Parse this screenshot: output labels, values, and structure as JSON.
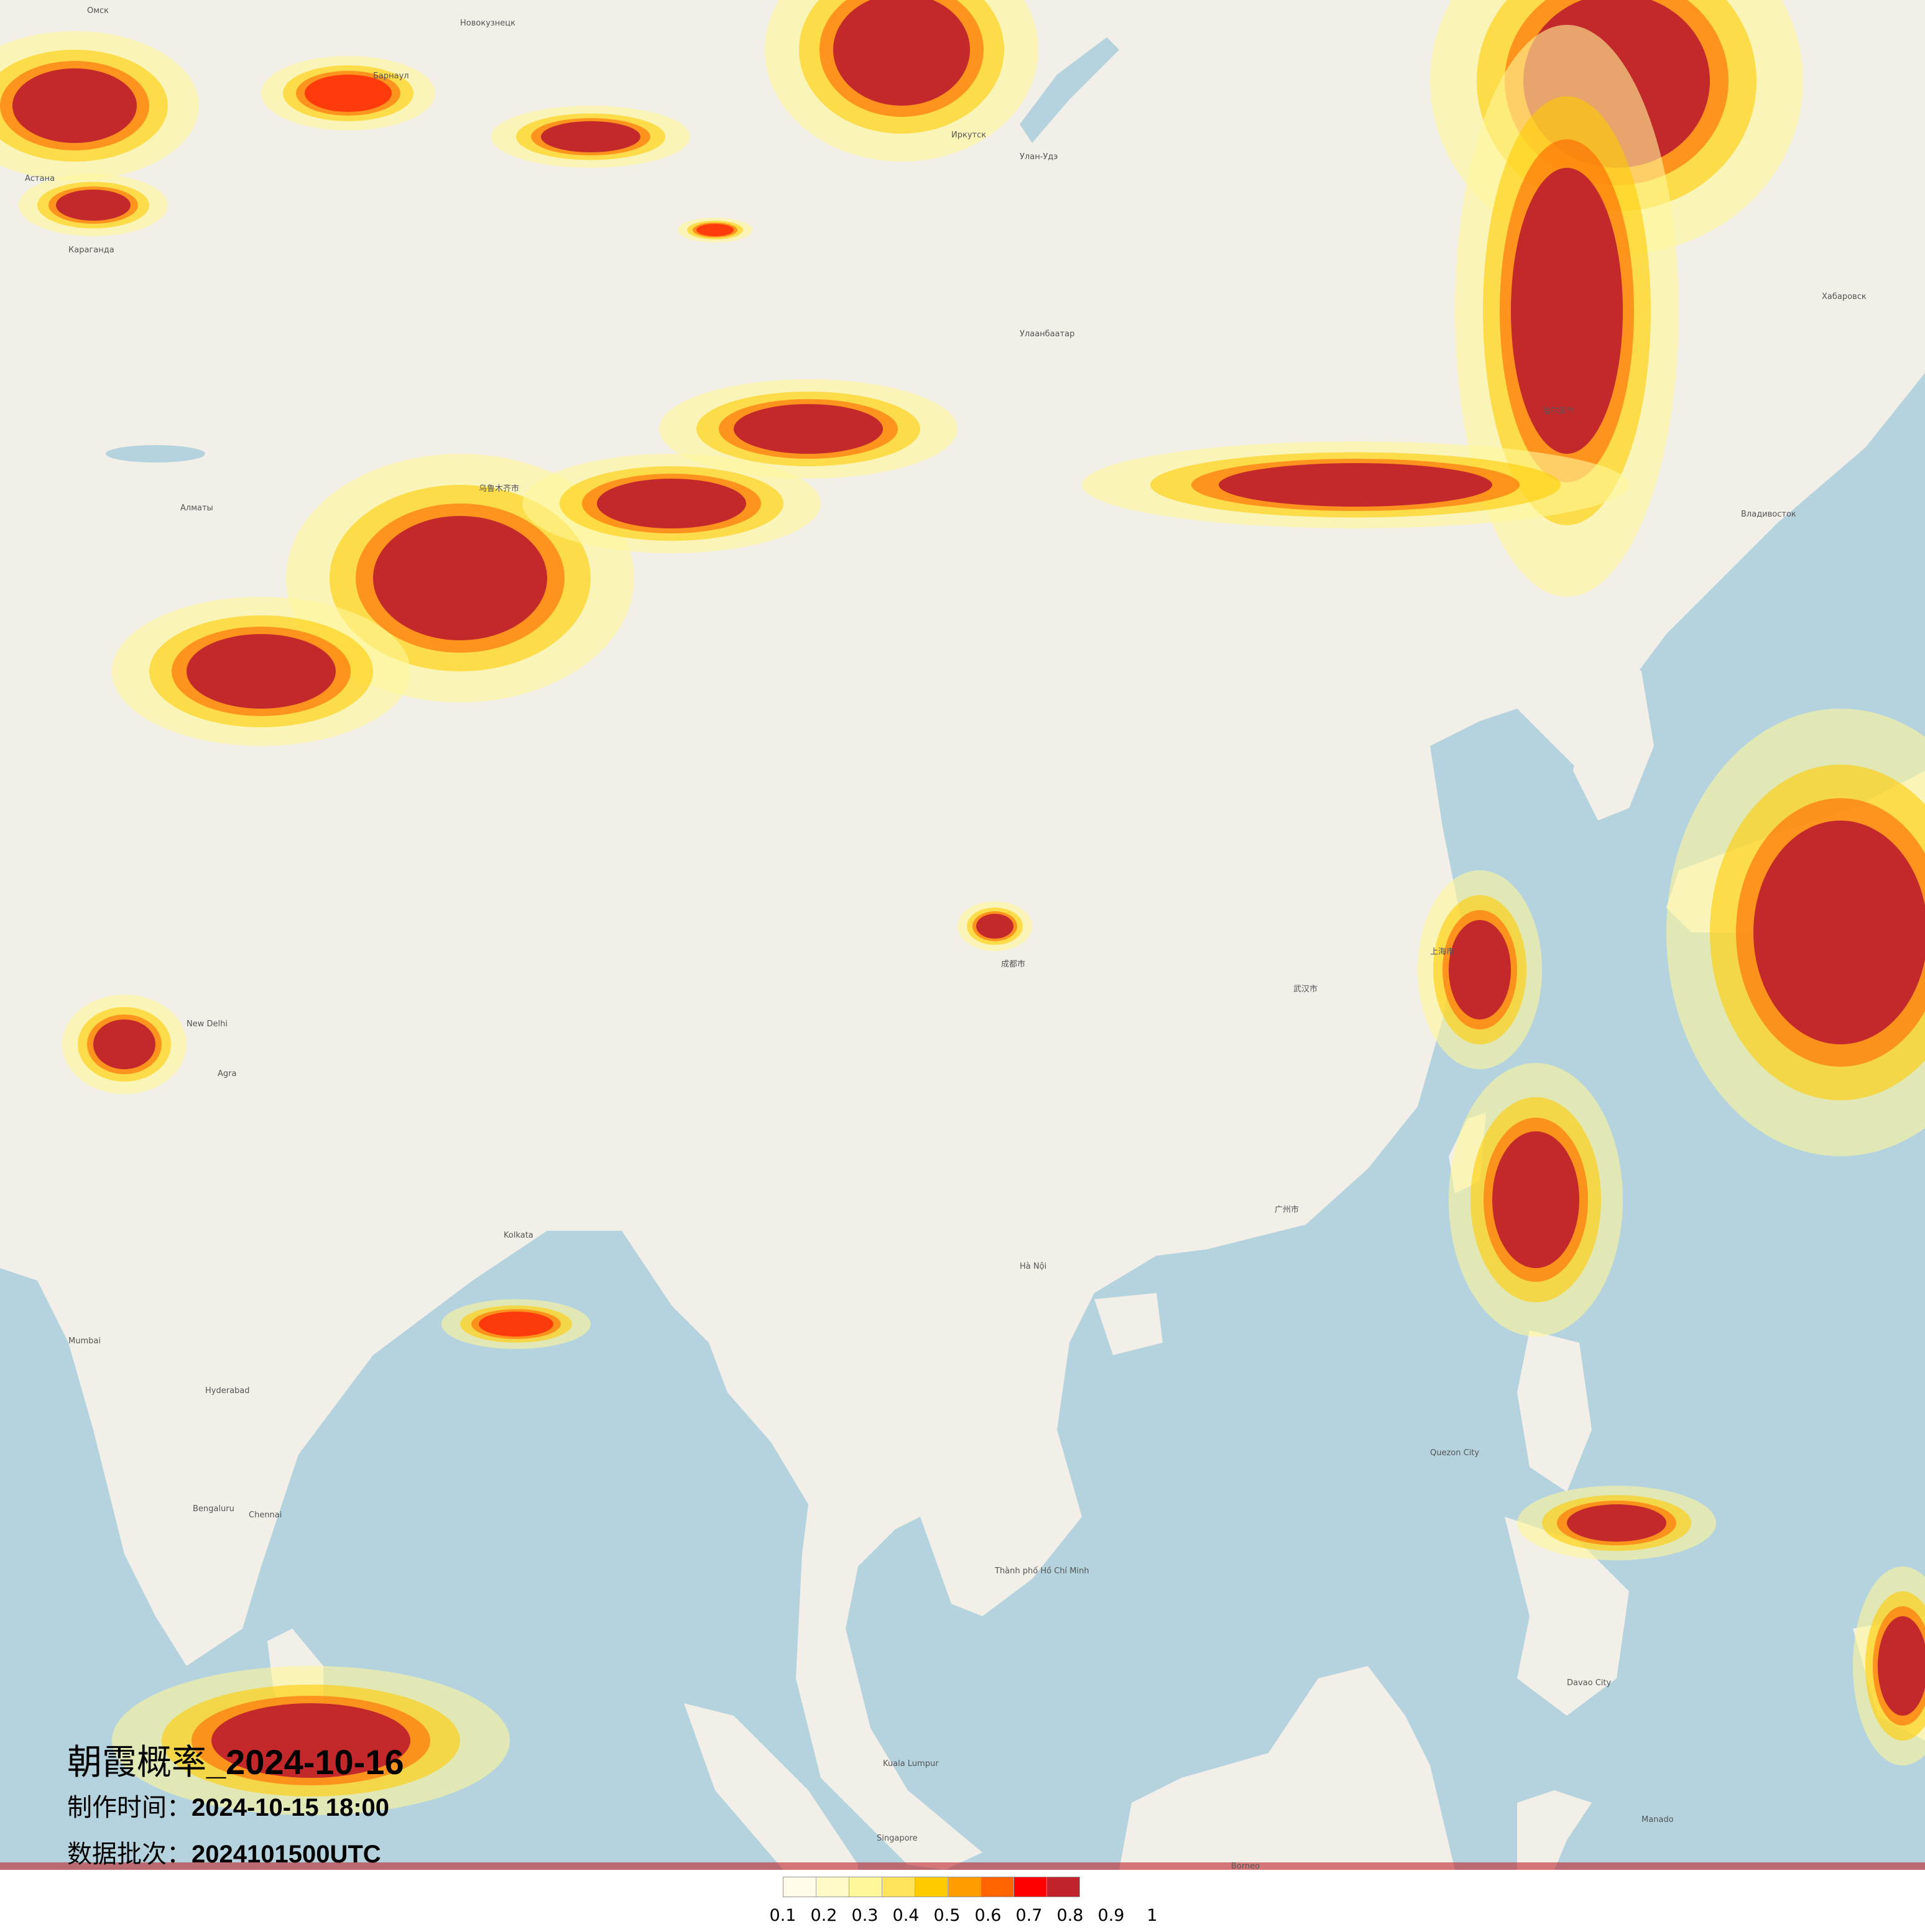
{
  "title": "朝霞概率_2024-10-16",
  "title_cn": "朝霞概率",
  "title_date": "_2024-10-16",
  "made_label": "制作时间：",
  "made_value": "2024-10-15 18:00",
  "batch_label": "数据批次：",
  "batch_value": "2024101500UTC",
  "legend": {
    "colors": [
      "#fffbe8",
      "#fff9c8",
      "#fff799",
      "#ffe35a",
      "#ffcc00",
      "#ff9c00",
      "#ff6400",
      "#ff0000",
      "#c0232c"
    ],
    "ticks": [
      "0.1",
      "0.2",
      "0.3",
      "0.4",
      "0.5",
      "0.6",
      "0.7",
      "0.8",
      "0.9",
      "1"
    ]
  },
  "colors": {
    "land": "#f2efe9",
    "sea": "#b5d3de"
  },
  "cities": [
    "Омск",
    "Новокузнецк",
    "Барнаул",
    "Астана",
    "Караганда",
    "Иркутск",
    "Улан-Удэ",
    "Улаанбаатар",
    "Хабаровск",
    "Владивосток",
    "Алматы",
    "乌鲁木齐市",
    "New Delhi",
    "Agra",
    "Kolkata",
    "Mumbai",
    "Hyderabad",
    "Bengaluru",
    "Chennai",
    "Hà Nội",
    "Thành phố Hồ Chí Minh",
    "Quezon City",
    "Kuala Lumpur",
    "Singapore",
    "Borneo",
    "Manado",
    "Davao City",
    "广州市",
    "武汉市",
    "上海市",
    "哈尔滨市",
    "成都市"
  ]
}
